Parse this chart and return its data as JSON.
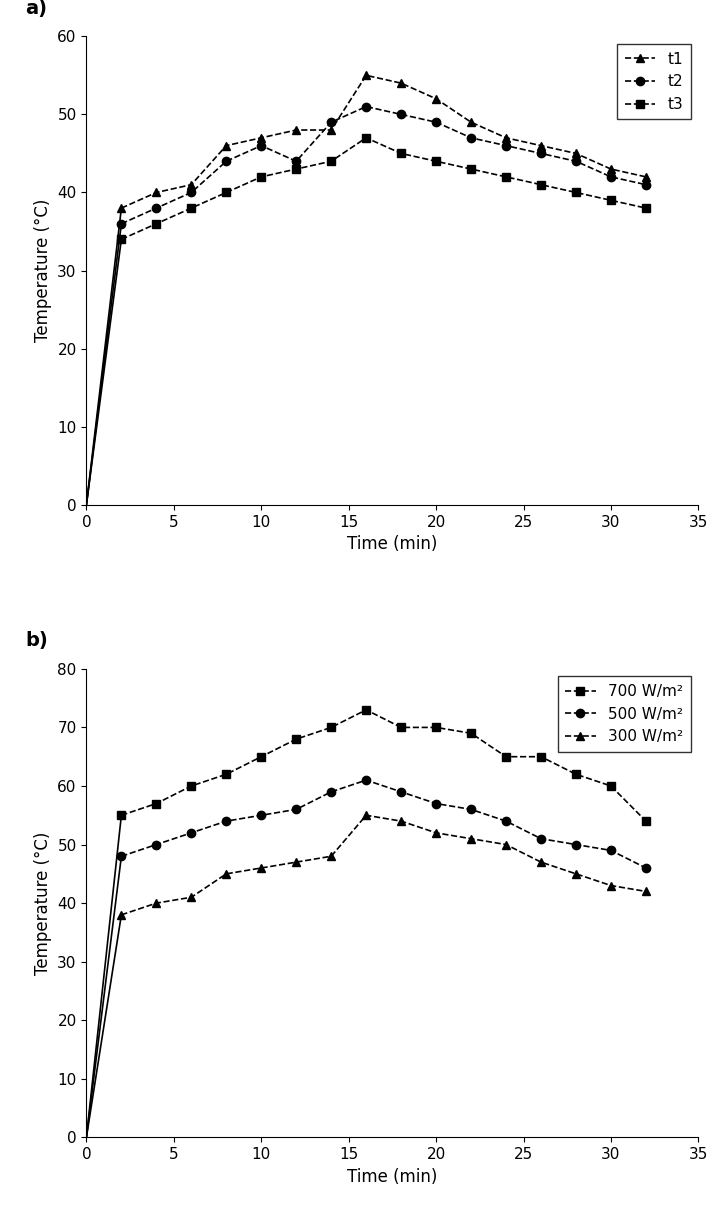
{
  "panel_a": {
    "label": "a)",
    "xlabel": "Time (min)",
    "ylabel": "Temperature (°C)",
    "ylabel_display": "Temperature (°C)",
    "xlim": [
      0,
      35
    ],
    "ylim": [
      0,
      60
    ],
    "xticks": [
      0,
      5,
      10,
      15,
      20,
      25,
      30,
      35
    ],
    "yticks": [
      0,
      10,
      20,
      30,
      40,
      50,
      60
    ],
    "series": [
      {
        "label": "t1",
        "marker": "^",
        "linestyle": "-",
        "x": [
          0,
          2,
          4,
          6,
          8,
          10,
          12,
          14,
          16,
          18,
          20,
          22,
          24,
          26,
          28,
          30,
          32
        ],
        "y": [
          0,
          38,
          40,
          41,
          46,
          47,
          48,
          48,
          55,
          54,
          52,
          49,
          47,
          46,
          45,
          43,
          42
        ]
      },
      {
        "label": "t2",
        "marker": "o",
        "linestyle": "-",
        "x": [
          0,
          2,
          4,
          6,
          8,
          10,
          12,
          14,
          16,
          18,
          20,
          22,
          24,
          26,
          28,
          30,
          32
        ],
        "y": [
          0,
          36,
          38,
          40,
          44,
          46,
          44,
          49,
          51,
          50,
          49,
          47,
          46,
          45,
          44,
          42,
          41
        ]
      },
      {
        "label": "t3",
        "marker": "s",
        "linestyle": "-",
        "x": [
          0,
          2,
          4,
          6,
          8,
          10,
          12,
          14,
          16,
          18,
          20,
          22,
          24,
          26,
          28,
          30,
          32
        ],
        "y": [
          0,
          34,
          36,
          38,
          40,
          42,
          43,
          44,
          47,
          45,
          44,
          43,
          42,
          41,
          40,
          39,
          38
        ]
      }
    ]
  },
  "panel_b": {
    "label": "b)",
    "xlabel": "Time (min)",
    "ylabel": "Temperature (°C)",
    "xlim": [
      0,
      35
    ],
    "ylim": [
      0,
      80
    ],
    "xticks": [
      0,
      5,
      10,
      15,
      20,
      25,
      30,
      35
    ],
    "yticks": [
      0,
      10,
      20,
      30,
      40,
      50,
      60,
      70,
      80
    ],
    "series": [
      {
        "label": "700 W/m²",
        "marker": "s",
        "linestyle": "-",
        "x": [
          0,
          2,
          4,
          6,
          8,
          10,
          12,
          14,
          16,
          18,
          20,
          22,
          24,
          26,
          28,
          30,
          32
        ],
        "y": [
          0,
          55,
          57,
          60,
          62,
          65,
          68,
          70,
          73,
          70,
          70,
          69,
          65,
          65,
          62,
          60,
          54
        ]
      },
      {
        "label": "500 W/m²",
        "marker": "o",
        "linestyle": "-",
        "x": [
          0,
          2,
          4,
          6,
          8,
          10,
          12,
          14,
          16,
          18,
          20,
          22,
          24,
          26,
          28,
          30,
          32
        ],
        "y": [
          0,
          48,
          50,
          52,
          54,
          55,
          56,
          59,
          61,
          59,
          57,
          56,
          54,
          51,
          50,
          49,
          46
        ]
      },
      {
        "label": "300 W/m²",
        "marker": "^",
        "linestyle": "-",
        "x": [
          0,
          2,
          4,
          6,
          8,
          10,
          12,
          14,
          16,
          18,
          20,
          22,
          24,
          26,
          28,
          30,
          32
        ],
        "y": [
          0,
          38,
          40,
          41,
          45,
          46,
          47,
          48,
          55,
          54,
          52,
          51,
          50,
          47,
          45,
          43,
          42
        ]
      }
    ]
  },
  "background_color": "#ffffff",
  "label_fontsize": 12,
  "tick_fontsize": 11,
  "legend_fontsize": 11,
  "panel_label_fontsize": 14,
  "markersize": 6,
  "linewidth": 1.2
}
